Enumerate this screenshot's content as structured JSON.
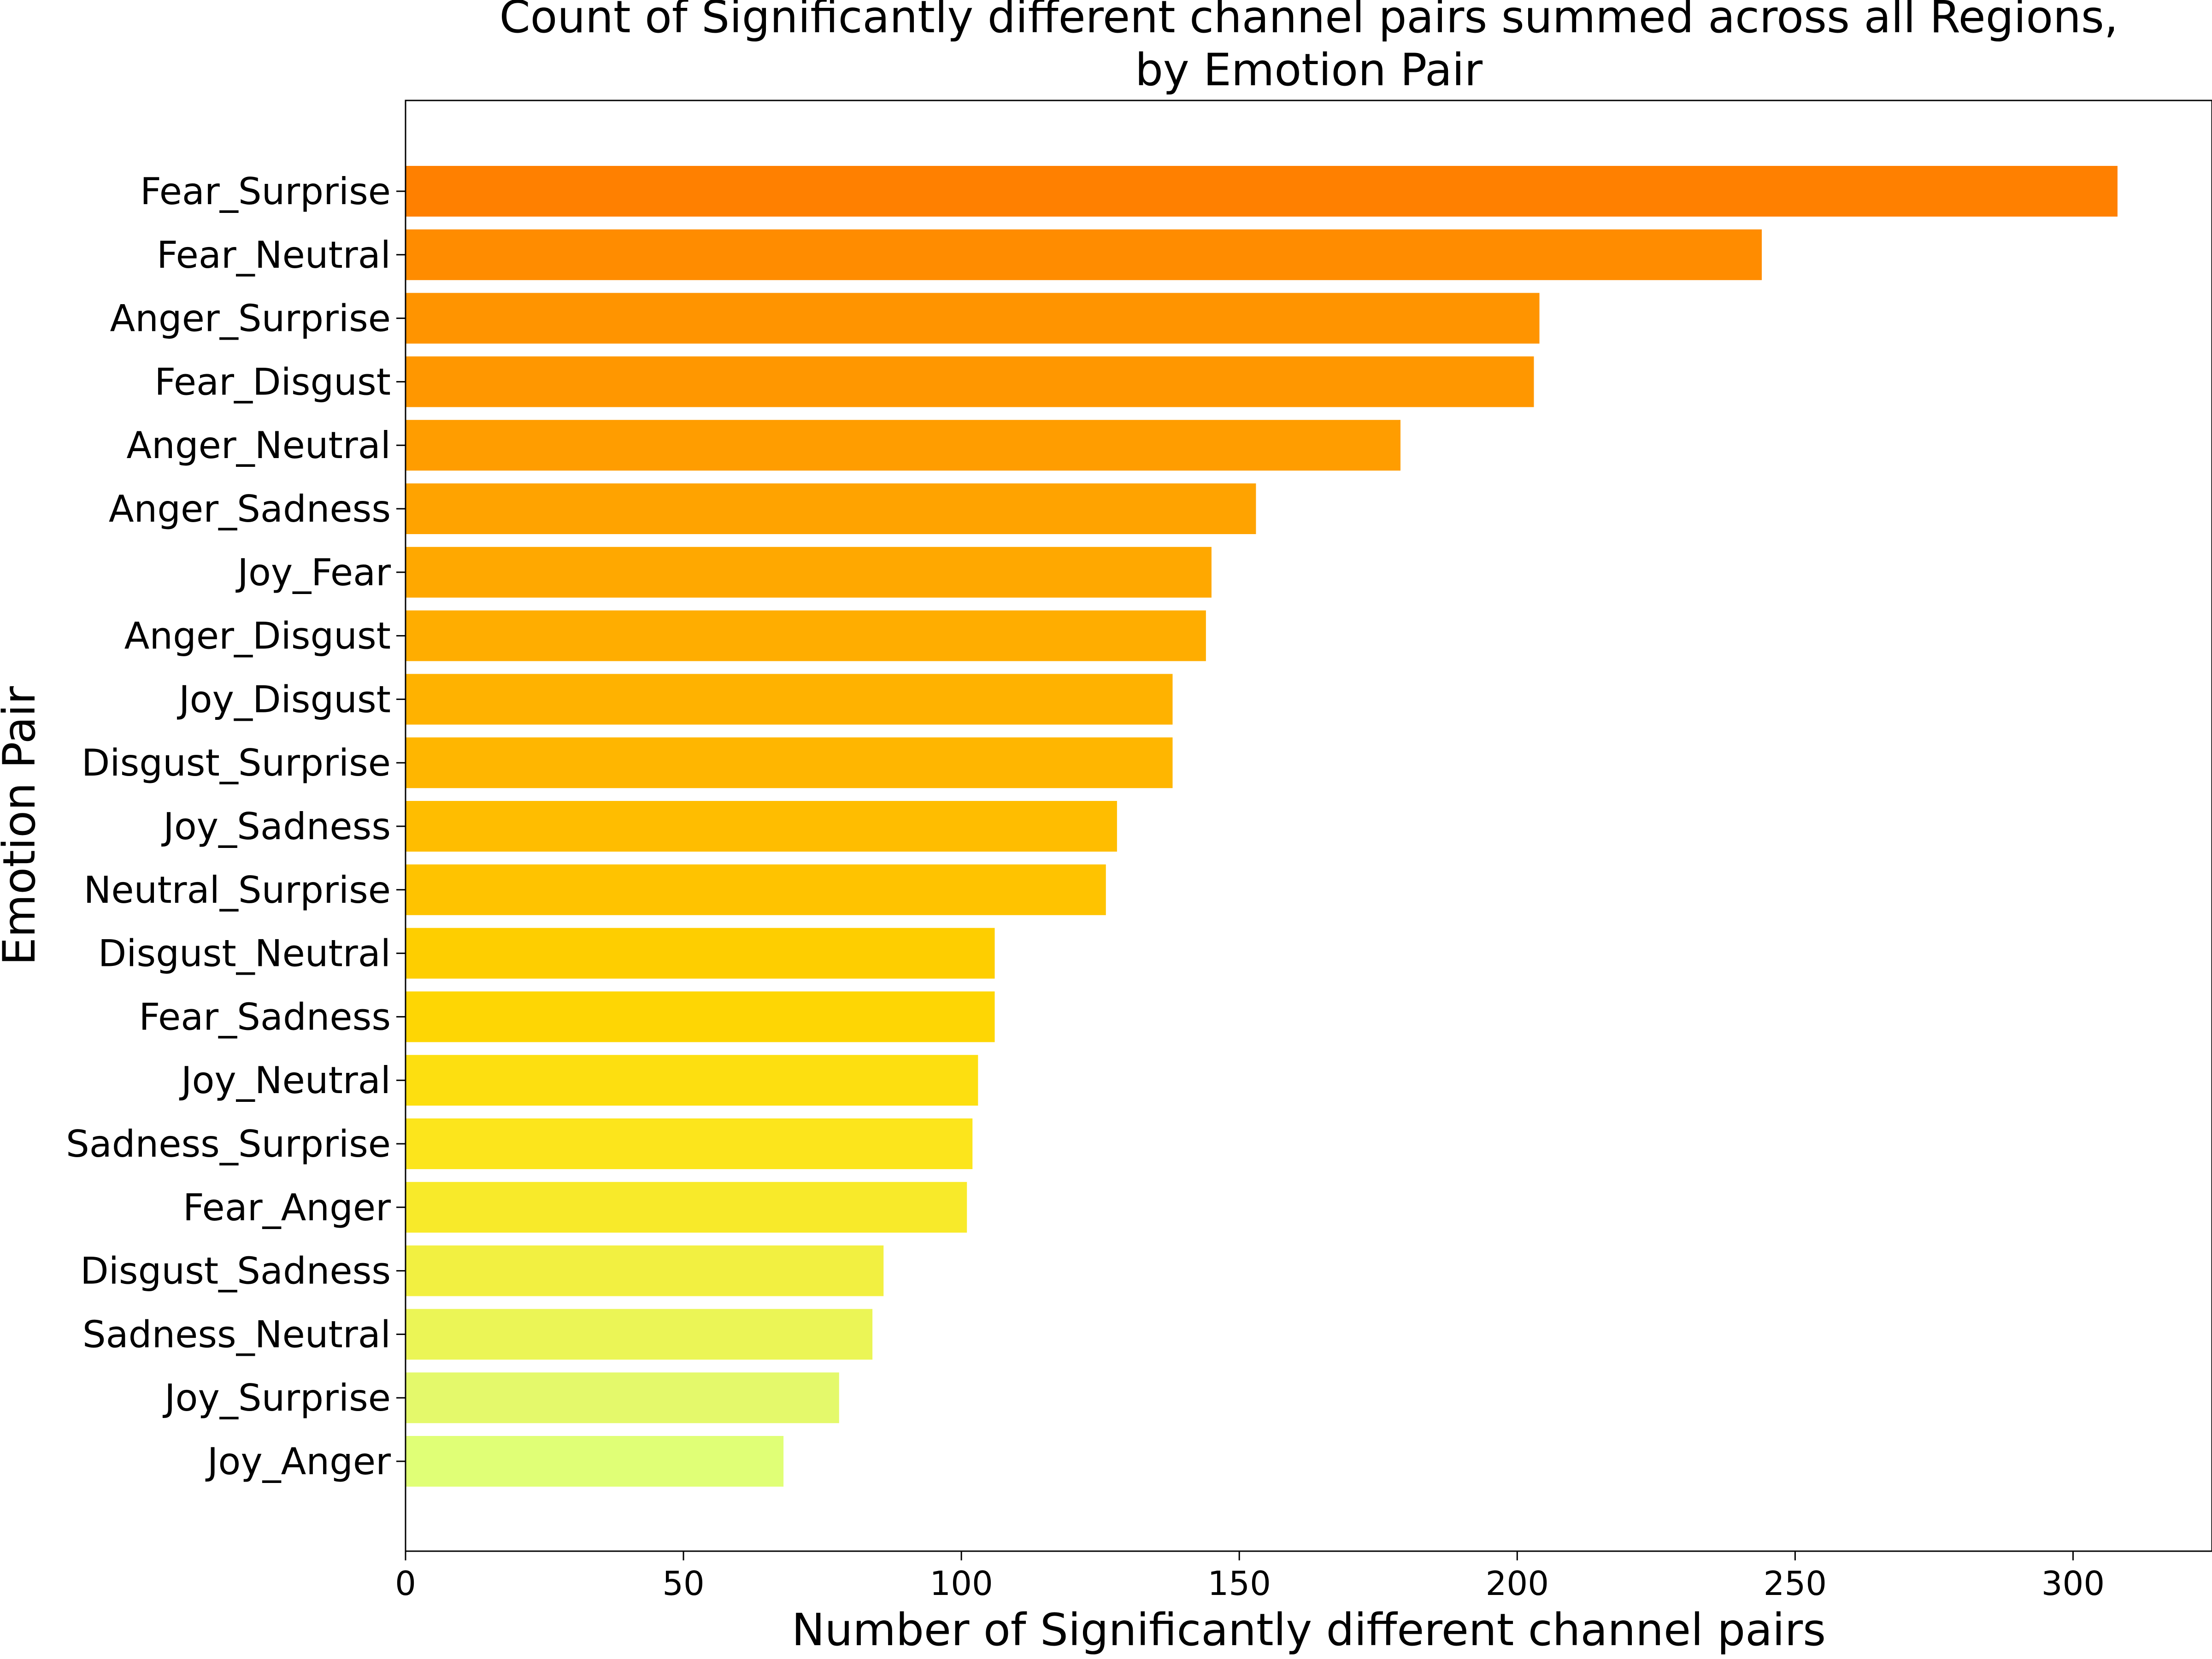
{
  "chart_data": {
    "type": "bar",
    "orientation": "horizontal",
    "title_lines": [
      "Count of Significantly different channel pairs summed across all Regions,",
      "by Emotion Pair"
    ],
    "xlabel": "Number of Significantly different channel pairs",
    "ylabel": "Emotion Pair",
    "xlim": [
      0,
      325
    ],
    "xticks": [
      0,
      50,
      100,
      150,
      200,
      250,
      300
    ],
    "grid": false,
    "colormap": "Wistia-like (yellow to orange, higher values more orange)",
    "categories": [
      "Fear_Surprise",
      "Fear_Neutral",
      "Anger_Surprise",
      "Fear_Disgust",
      "Anger_Neutral",
      "Anger_Sadness",
      "Joy_Fear",
      "Anger_Disgust",
      "Joy_Disgust",
      "Disgust_Surprise",
      "Joy_Sadness",
      "Neutral_Surprise",
      "Disgust_Neutral",
      "Fear_Sadness",
      "Joy_Neutral",
      "Sadness_Surprise",
      "Fear_Anger",
      "Disgust_Sadness",
      "Sadness_Neutral",
      "Joy_Surprise",
      "Joy_Anger"
    ],
    "values": [
      308,
      244,
      204,
      203,
      179,
      153,
      145,
      144,
      138,
      138,
      128,
      126,
      106,
      106,
      103,
      102,
      101,
      86,
      84,
      78,
      68
    ],
    "colors": [
      "#ff8000",
      "#ff8c00",
      "#ff9400",
      "#ff9700",
      "#ff9d00",
      "#ffa300",
      "#ffa800",
      "#ffad00",
      "#ffb200",
      "#ffb600",
      "#ffbd00",
      "#ffc300",
      "#fece00",
      "#fed604",
      "#fddf10",
      "#fce51c",
      "#f8ea2a",
      "#f2f041",
      "#ebf556",
      "#e4f96b",
      "#e0ff76"
    ]
  }
}
